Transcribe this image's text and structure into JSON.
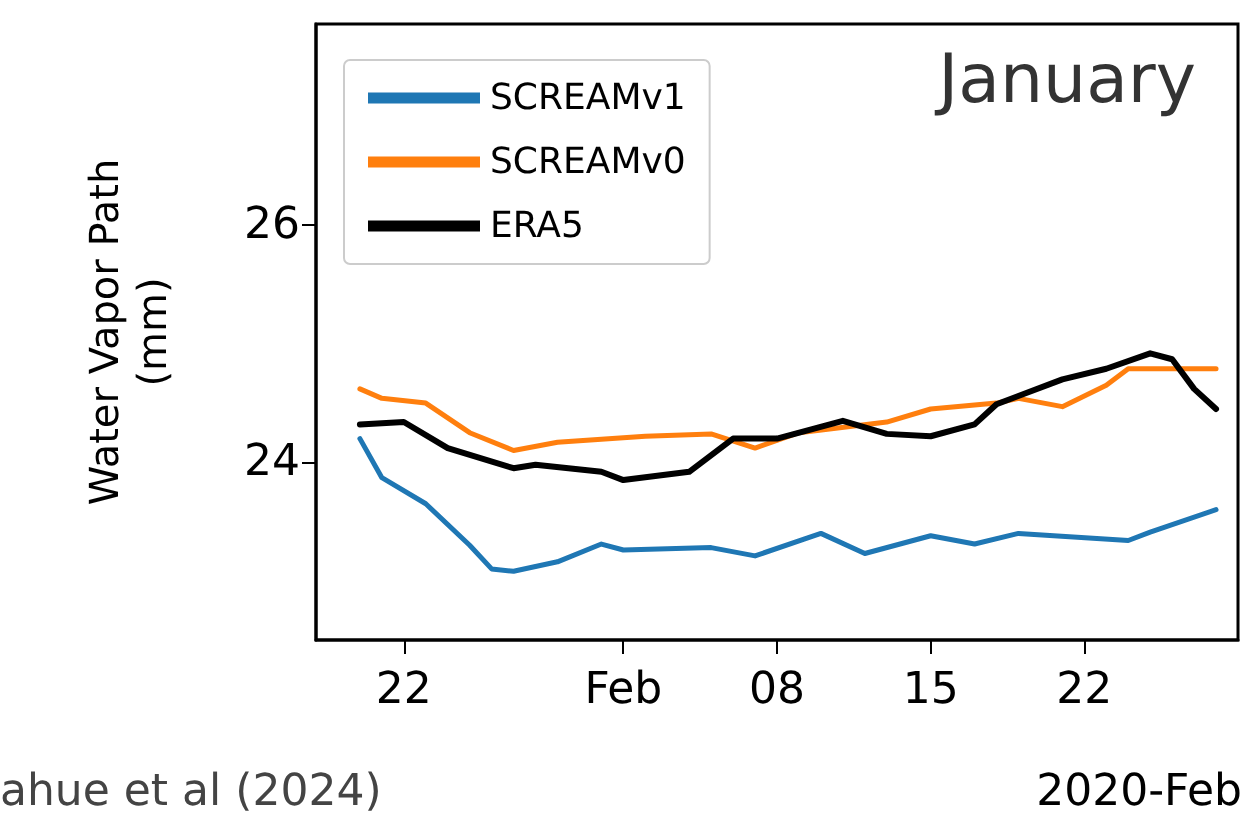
{
  "chart_data": {
    "type": "line",
    "title": "January",
    "ylabel": "Water Vapor Path\n(mm)",
    "xlabel": "2020-Feb",
    "annotations": [
      "ahue et al (2024)"
    ],
    "xlim": [
      "2020-01-18",
      "2020-02-29"
    ],
    "xticks": [
      {
        "value": "2020-01-22",
        "label": "22"
      },
      {
        "value": "2020-02-01",
        "label": "Feb"
      },
      {
        "value": "2020-02-08",
        "label": "08"
      },
      {
        "value": "2020-02-15",
        "label": "15"
      },
      {
        "value": "2020-02-22",
        "label": "22"
      }
    ],
    "ylim": [
      22.5,
      27.7
    ],
    "yticks": [
      24,
      26
    ],
    "grid": false,
    "legend": "top left",
    "marker": "none",
    "line_style": "solid",
    "series": [
      {
        "name": "SCREAMv1",
        "color": "#1f77b4",
        "x": [
          "2020-01-20",
          "2020-01-21",
          "2020-01-23",
          "2020-01-25",
          "2020-01-26",
          "2020-01-27",
          "2020-01-29",
          "2020-01-31",
          "2020-02-01",
          "2020-02-05",
          "2020-02-07",
          "2020-02-10",
          "2020-02-12",
          "2020-02-15",
          "2020-02-17",
          "2020-02-19",
          "2020-02-24",
          "2020-02-25",
          "2020-02-28"
        ],
        "values": [
          24.2,
          23.87,
          23.65,
          23.3,
          23.1,
          23.08,
          23.16,
          23.31,
          23.26,
          23.28,
          23.21,
          23.4,
          23.23,
          23.38,
          23.31,
          23.4,
          23.34,
          23.41,
          23.6
        ]
      },
      {
        "name": "SCREAMv0",
        "color": "#ff7f0e",
        "x": [
          "2020-01-20",
          "2020-01-21",
          "2020-01-23",
          "2020-01-25",
          "2020-01-27",
          "2020-01-29",
          "2020-02-02",
          "2020-02-05",
          "2020-02-07",
          "2020-02-09",
          "2020-02-13",
          "2020-02-15",
          "2020-02-18",
          "2020-02-19",
          "2020-02-21",
          "2020-02-23",
          "2020-02-24",
          "2020-02-28"
        ],
        "values": [
          24.62,
          24.54,
          24.5,
          24.25,
          24.1,
          24.17,
          24.22,
          24.24,
          24.12,
          24.25,
          24.34,
          24.45,
          24.5,
          24.54,
          24.47,
          24.65,
          24.79,
          24.79
        ]
      },
      {
        "name": "ERA5",
        "color": "#000000",
        "x": [
          "2020-01-20",
          "2020-01-22",
          "2020-01-24",
          "2020-01-27",
          "2020-01-28",
          "2020-01-31",
          "2020-02-01",
          "2020-02-04",
          "2020-02-06",
          "2020-02-08",
          "2020-02-11",
          "2020-02-13",
          "2020-02-15",
          "2020-02-17",
          "2020-02-18",
          "2020-02-21",
          "2020-02-23",
          "2020-02-25",
          "2020-02-26",
          "2020-02-27",
          "2020-02-28"
        ],
        "values": [
          24.32,
          24.34,
          24.12,
          23.95,
          23.98,
          23.92,
          23.85,
          23.92,
          24.2,
          24.2,
          24.35,
          24.24,
          24.22,
          24.32,
          24.49,
          24.7,
          24.79,
          24.92,
          24.87,
          24.62,
          24.45
        ]
      }
    ]
  }
}
